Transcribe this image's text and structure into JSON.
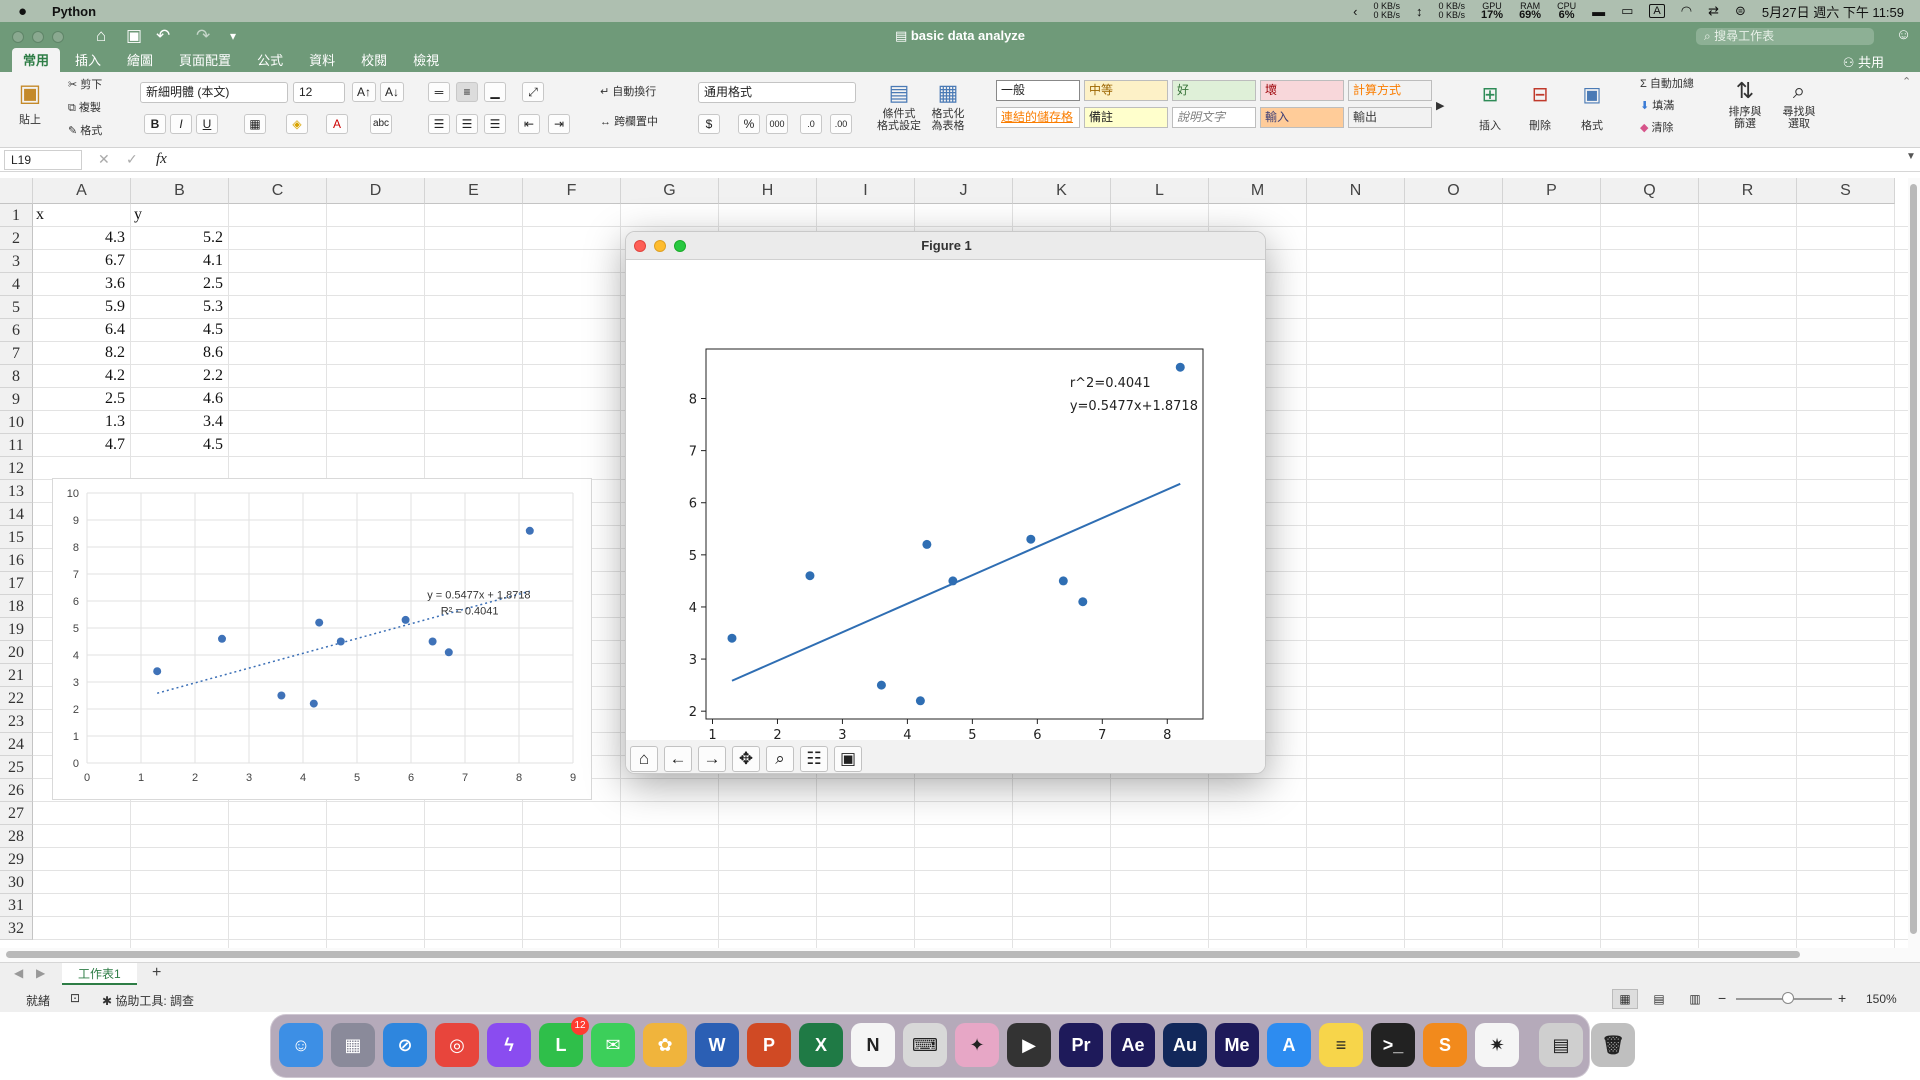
{
  "menubar": {
    "app_name": "Python",
    "network": [
      "0 KB/s",
      "0 KB/s"
    ],
    "network2": [
      "0 KB/s",
      "0 KB/s"
    ],
    "gpu": {
      "label": "GPU",
      "value": "17%"
    },
    "ram": {
      "label": "RAM",
      "value": "69%"
    },
    "cpu": {
      "label": "CPU",
      "value": "6%"
    },
    "input_method": "A",
    "datetime": "5月27日 週六 下午 11:59"
  },
  "window": {
    "title": "basic data analyze",
    "search_placeholder": "搜尋工作表",
    "share_label": "共用"
  },
  "tabs": [
    "常用",
    "插入",
    "繪圖",
    "頁面配置",
    "公式",
    "資料",
    "校閱",
    "檢視"
  ],
  "ribbon": {
    "paste": "貼上",
    "cut": "剪下",
    "copy": "複製",
    "format_painter": "格式",
    "font_name": "新細明體 (本文)",
    "font_size": "12",
    "wrap_text": "自動換行",
    "merge_center": "跨欄置中",
    "number_format": "通用格式",
    "conditional_format": [
      "條件式",
      "格式設定"
    ],
    "format_as_table": [
      "格式化",
      "為表格"
    ],
    "styles": [
      {
        "label": "一般",
        "bg": "#ffffff",
        "fg": "#222222"
      },
      {
        "label": "中等",
        "bg": "#fdf1c7",
        "fg": "#9c6500"
      },
      {
        "label": "好",
        "bg": "#dff0d8",
        "fg": "#3c763d"
      },
      {
        "label": "壞",
        "bg": "#f8d7da",
        "fg": "#9c0006"
      },
      {
        "label": "計算方式",
        "bg": "#f2f2f2",
        "fg": "#fa7d00"
      },
      {
        "label": "連結的儲存格",
        "bg": "#ffffff",
        "fg": "#fa7d00"
      },
      {
        "label": "備註",
        "bg": "#ffffcc",
        "fg": "#222222"
      },
      {
        "label": "說明文字",
        "bg": "#ffffff",
        "fg": "#7f7f7f"
      },
      {
        "label": "輸入",
        "bg": "#ffcc99",
        "fg": "#3f3f76"
      },
      {
        "label": "輸出",
        "bg": "#f2f2f2",
        "fg": "#3f3f3f"
      }
    ],
    "insert": "插入",
    "delete": "刪除",
    "format": "格式",
    "autosum": "自動加總",
    "fill": "填滿",
    "clear": "清除",
    "sort_filter": [
      "排序與",
      "篩選"
    ],
    "find_select": [
      "尋找與",
      "選取"
    ]
  },
  "formula_bar": {
    "name_box": "L19",
    "fx": "fx",
    "content": ""
  },
  "sheet": {
    "columns": [
      "A",
      "B",
      "C",
      "D",
      "E",
      "F",
      "G",
      "H",
      "I",
      "J",
      "K",
      "L",
      "M",
      "N",
      "O",
      "P",
      "Q",
      "R",
      "S"
    ],
    "rows": [
      "1",
      "2",
      "3",
      "4",
      "5",
      "6",
      "7",
      "8",
      "9",
      "10",
      "11",
      "12",
      "13",
      "14",
      "15",
      "16",
      "17",
      "18",
      "19",
      "20",
      "21",
      "22",
      "23",
      "24",
      "25",
      "26",
      "27",
      "28",
      "29",
      "30",
      "31",
      "32"
    ],
    "header": {
      "a": "x",
      "b": "y"
    },
    "data": [
      {
        "x": "4.3",
        "y": "5.2"
      },
      {
        "x": "6.7",
        "y": "4.1"
      },
      {
        "x": "3.6",
        "y": "2.5"
      },
      {
        "x": "5.9",
        "y": "5.3"
      },
      {
        "x": "6.4",
        "y": "4.5"
      },
      {
        "x": "8.2",
        "y": "8.6"
      },
      {
        "x": "4.2",
        "y": "2.2"
      },
      {
        "x": "2.5",
        "y": "4.6"
      },
      {
        "x": "1.3",
        "y": "3.4"
      },
      {
        "x": "4.7",
        "y": "4.5"
      }
    ]
  },
  "sheet_tab": "工作表1",
  "status": {
    "ready": "就緒",
    "accessibility": "協助工具: 調查",
    "zoom": "150%"
  },
  "figure": {
    "title": "Figure 1",
    "r2_text": "r^2=0.4041",
    "eq_text": "y=0.5477x+1.8718"
  },
  "chart_data": [
    {
      "type": "scatter",
      "title": "",
      "series": [
        {
          "x": [
            4.3,
            6.7,
            3.6,
            5.9,
            6.4,
            8.2,
            4.2,
            2.5,
            1.3,
            4.7
          ],
          "y": [
            5.2,
            4.1,
            2.5,
            5.3,
            4.5,
            8.6,
            2.2,
            4.6,
            3.4,
            4.5
          ]
        }
      ],
      "trendline": {
        "slope": 0.5477,
        "intercept": 1.8718,
        "style": "dotted"
      },
      "annotations": [
        "y = 0.5477x + 1.8718",
        "R² = 0.4041"
      ],
      "xlim": [
        0,
        9
      ],
      "ylim": [
        0,
        10
      ],
      "xticks": [
        "0",
        "1",
        "2",
        "3",
        "4",
        "5",
        "6",
        "7",
        "8",
        "9"
      ],
      "yticks": [
        "0",
        "1",
        "2",
        "3",
        "4",
        "5",
        "6",
        "7",
        "8",
        "9",
        "10"
      ],
      "grid": true
    },
    {
      "type": "scatter",
      "title": "",
      "series": [
        {
          "x": [
            4.3,
            6.7,
            3.6,
            5.9,
            6.4,
            8.2,
            4.2,
            2.5,
            1.3,
            4.7
          ],
          "y": [
            5.2,
            4.1,
            2.5,
            5.3,
            4.5,
            8.6,
            2.2,
            4.6,
            3.4,
            4.5
          ]
        }
      ],
      "trendline": {
        "slope": 0.5477,
        "intercept": 1.8718,
        "style": "solid"
      },
      "annotations": [
        "r^2=0.4041",
        "y=0.5477x+1.8718"
      ],
      "xlim": [
        0.9,
        8.55
      ],
      "ylim": [
        1.85,
        8.95
      ],
      "xticks": [
        "1",
        "2",
        "3",
        "4",
        "5",
        "6",
        "7",
        "8"
      ],
      "yticks": [
        "2",
        "3",
        "4",
        "5",
        "6",
        "7",
        "8"
      ],
      "grid": false,
      "colors": {
        "point": "#2f6eb3",
        "line": "#2f6eb3"
      }
    }
  ],
  "dock_apps": [
    {
      "name": "Finder",
      "glyph": "☺",
      "color": "#3d8fe5"
    },
    {
      "name": "Launchpad",
      "glyph": "▦",
      "color": "#8a8a9a"
    },
    {
      "name": "Safari",
      "glyph": "⊘",
      "color": "#2e86de"
    },
    {
      "name": "Chrome",
      "glyph": "◎",
      "color": "#e8453c"
    },
    {
      "name": "Messenger",
      "glyph": "ϟ",
      "color": "#8a4cf0"
    },
    {
      "name": "LINE",
      "glyph": "L",
      "color": "#2fbf4a"
    },
    {
      "name": "Messages",
      "glyph": "✉",
      "color": "#3ccf5a"
    },
    {
      "name": "Photos",
      "glyph": "✿",
      "color": "#f0b43c"
    },
    {
      "name": "Word",
      "glyph": "W",
      "color": "#2b5fb4"
    },
    {
      "name": "PowerPoint",
      "glyph": "P",
      "color": "#d04a24"
    },
    {
      "name": "Excel",
      "glyph": "X",
      "color": "#1f7a45"
    },
    {
      "name": "Notion",
      "glyph": "N",
      "color": "#f5f5f5"
    },
    {
      "name": "Keyboard",
      "glyph": "⌨",
      "color": "#d8d8d8"
    },
    {
      "name": "Pinwheel",
      "glyph": "✦",
      "color": "#e7a7c6"
    },
    {
      "name": "Final Cut",
      "glyph": "▶",
      "color": "#333333"
    },
    {
      "name": "Premiere",
      "glyph": "Pr",
      "color": "#1e1a5a"
    },
    {
      "name": "After Effects",
      "glyph": "Ae",
      "color": "#1e1a5a"
    },
    {
      "name": "Audition",
      "glyph": "Au",
      "color": "#12285a"
    },
    {
      "name": "Media Encoder",
      "glyph": "Me",
      "color": "#1e1a5a"
    },
    {
      "name": "App Store",
      "glyph": "A",
      "color": "#2d8cf0"
    },
    {
      "name": "Notes",
      "glyph": "≡",
      "color": "#f7d54a"
    },
    {
      "name": "Terminal",
      "glyph": ">_",
      "color": "#222222"
    },
    {
      "name": "Sublime",
      "glyph": "S",
      "color": "#f28a1c"
    },
    {
      "name": "Pinwheel2",
      "glyph": "✷",
      "color": "#f5f5f5"
    },
    {
      "name": "Documents",
      "glyph": "▤",
      "color": "#cfcfcf"
    },
    {
      "name": "Trash",
      "glyph": "🗑",
      "color": "#bfbfbf"
    }
  ],
  "dock_badge": "12"
}
